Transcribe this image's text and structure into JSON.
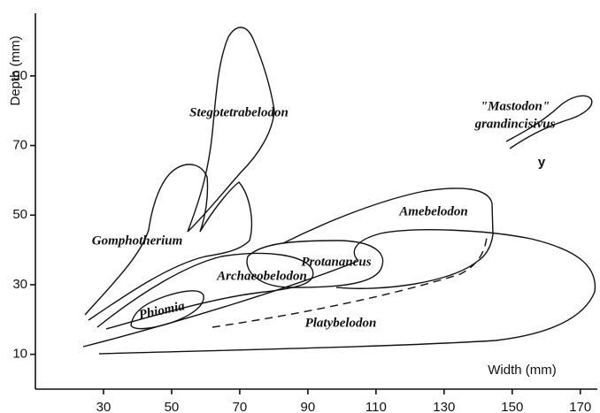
{
  "chart_data": {
    "type": "region",
    "xlabel": "Width (mm)",
    "ylabel": "Depth (mm)",
    "xlim": [
      10,
      175
    ],
    "ylim": [
      0,
      108
    ],
    "xticks": [
      30,
      50,
      70,
      90,
      110,
      130,
      150,
      170
    ],
    "yticks": [
      10,
      30,
      50,
      70,
      90
    ],
    "regions": [
      "Stegotetrabelodon",
      "Gomphotherium",
      "Amebelodon",
      "Protanancus",
      "Archaeobelodon",
      "Phiomia",
      "Platybelodon"
    ],
    "mastodon": [
      "\"Mastodon\"",
      "grandincisivus"
    ],
    "annotation": "y"
  }
}
